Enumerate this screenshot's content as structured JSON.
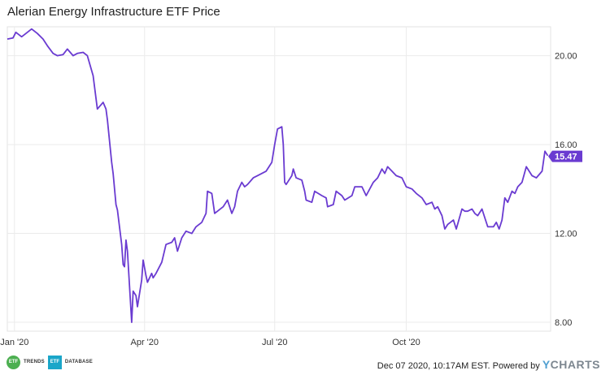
{
  "chart_data": {
    "type": "line",
    "title": "Alerian Energy Infrastructure ETF Price",
    "x_tick_labels": [
      "Jan '20",
      "Apr '20",
      "Jul '20",
      "Oct '20"
    ],
    "y_tick_labels": [
      "8.00",
      "12.00",
      "16.00",
      "20.00"
    ],
    "ylim": [
      7.6,
      21.3
    ],
    "grid": true,
    "series": [
      {
        "color": "#6a3bd1",
        "last_value_label": "15.47",
        "points": [
          [
            "2019-12-27",
            20.75
          ],
          [
            "2019-12-31",
            20.8
          ],
          [
            "2020-01-02",
            21.05
          ],
          [
            "2020-01-06",
            20.85
          ],
          [
            "2020-01-09",
            21.0
          ],
          [
            "2020-01-13",
            21.2
          ],
          [
            "2020-01-17",
            21.0
          ],
          [
            "2020-01-21",
            20.75
          ],
          [
            "2020-01-24",
            20.45
          ],
          [
            "2020-01-28",
            20.1
          ],
          [
            "2020-01-31",
            20.0
          ],
          [
            "2020-02-04",
            20.05
          ],
          [
            "2020-02-07",
            20.3
          ],
          [
            "2020-02-11",
            20.0
          ],
          [
            "2020-02-14",
            20.1
          ],
          [
            "2020-02-18",
            20.15
          ],
          [
            "2020-02-21",
            20.0
          ],
          [
            "2020-02-25",
            19.1
          ],
          [
            "2020-02-28",
            17.6
          ],
          [
            "2020-03-03",
            17.9
          ],
          [
            "2020-03-05",
            17.6
          ],
          [
            "2020-03-06",
            17.1
          ],
          [
            "2020-03-09",
            15.2
          ],
          [
            "2020-03-10",
            14.7
          ],
          [
            "2020-03-12",
            13.3
          ],
          [
            "2020-03-13",
            13.05
          ],
          [
            "2020-03-16",
            11.5
          ],
          [
            "2020-03-17",
            10.6
          ],
          [
            "2020-03-18",
            10.5
          ],
          [
            "2020-03-19",
            11.7
          ],
          [
            "2020-03-20",
            11.2
          ],
          [
            "2020-03-23",
            8.0
          ],
          [
            "2020-03-24",
            9.4
          ],
          [
            "2020-03-26",
            9.2
          ],
          [
            "2020-03-27",
            8.7
          ],
          [
            "2020-03-30",
            9.9
          ],
          [
            "2020-03-31",
            10.8
          ],
          [
            "2020-04-02",
            10.1
          ],
          [
            "2020-04-03",
            9.8
          ],
          [
            "2020-04-06",
            10.2
          ],
          [
            "2020-04-07",
            10.0
          ],
          [
            "2020-04-09",
            10.2
          ],
          [
            "2020-04-13",
            10.7
          ],
          [
            "2020-04-16",
            11.5
          ],
          [
            "2020-04-20",
            11.6
          ],
          [
            "2020-04-22",
            11.8
          ],
          [
            "2020-04-24",
            11.2
          ],
          [
            "2020-04-27",
            11.8
          ],
          [
            "2020-04-30",
            12.1
          ],
          [
            "2020-05-04",
            12.0
          ],
          [
            "2020-05-07",
            12.3
          ],
          [
            "2020-05-11",
            12.5
          ],
          [
            "2020-05-14",
            12.9
          ],
          [
            "2020-05-15",
            13.9
          ],
          [
            "2020-05-18",
            13.8
          ],
          [
            "2020-05-20",
            12.9
          ],
          [
            "2020-05-22",
            13.0
          ],
          [
            "2020-05-26",
            13.2
          ],
          [
            "2020-05-29",
            13.5
          ],
          [
            "2020-06-01",
            12.9
          ],
          [
            "2020-06-03",
            13.2
          ],
          [
            "2020-06-05",
            13.9
          ],
          [
            "2020-06-08",
            14.3
          ],
          [
            "2020-06-10",
            14.1
          ],
          [
            "2020-06-12",
            14.2
          ],
          [
            "2020-06-16",
            14.5
          ],
          [
            "2020-06-19",
            14.6
          ],
          [
            "2020-06-22",
            14.7
          ],
          [
            "2020-06-25",
            14.8
          ],
          [
            "2020-06-29",
            15.2
          ],
          [
            "2020-07-01",
            16.0
          ],
          [
            "2020-07-03",
            16.7
          ],
          [
            "2020-07-06",
            16.8
          ],
          [
            "2020-07-07",
            16.0
          ],
          [
            "2020-07-08",
            14.3
          ],
          [
            "2020-07-09",
            14.2
          ],
          [
            "2020-07-13",
            14.6
          ],
          [
            "2020-07-14",
            14.9
          ],
          [
            "2020-07-16",
            14.5
          ],
          [
            "2020-07-20",
            14.4
          ],
          [
            "2020-07-22",
            13.9
          ],
          [
            "2020-07-23",
            13.5
          ],
          [
            "2020-07-27",
            13.4
          ],
          [
            "2020-07-29",
            13.9
          ],
          [
            "2020-08-03",
            13.7
          ],
          [
            "2020-08-06",
            13.6
          ],
          [
            "2020-08-07",
            13.2
          ],
          [
            "2020-08-11",
            13.3
          ],
          [
            "2020-08-13",
            13.9
          ],
          [
            "2020-08-17",
            13.7
          ],
          [
            "2020-08-19",
            13.5
          ],
          [
            "2020-08-24",
            13.7
          ],
          [
            "2020-08-26",
            14.1
          ],
          [
            "2020-08-31",
            14.1
          ],
          [
            "2020-09-03",
            13.7
          ],
          [
            "2020-09-08",
            14.3
          ],
          [
            "2020-09-11",
            14.5
          ],
          [
            "2020-09-14",
            14.9
          ],
          [
            "2020-09-16",
            14.7
          ],
          [
            "2020-09-18",
            15.0
          ],
          [
            "2020-09-21",
            14.8
          ],
          [
            "2020-09-24",
            14.6
          ],
          [
            "2020-09-28",
            14.5
          ],
          [
            "2020-10-01",
            14.1
          ],
          [
            "2020-10-05",
            14.0
          ],
          [
            "2020-10-08",
            13.8
          ],
          [
            "2020-10-12",
            13.6
          ],
          [
            "2020-10-15",
            13.3
          ],
          [
            "2020-10-19",
            13.4
          ],
          [
            "2020-10-21",
            13.1
          ],
          [
            "2020-10-23",
            13.2
          ],
          [
            "2020-10-26",
            12.8
          ],
          [
            "2020-10-28",
            12.2
          ],
          [
            "2020-10-30",
            12.4
          ],
          [
            "2020-11-03",
            12.6
          ],
          [
            "2020-11-05",
            12.2
          ],
          [
            "2020-11-09",
            13.1
          ],
          [
            "2020-11-11",
            13.0
          ],
          [
            "2020-11-13",
            13.0
          ],
          [
            "2020-11-16",
            13.1
          ],
          [
            "2020-11-18",
            12.9
          ],
          [
            "2020-11-20",
            12.8
          ],
          [
            "2020-11-23",
            13.1
          ],
          [
            "2020-11-25",
            12.7
          ],
          [
            "2020-11-27",
            12.3
          ],
          [
            "2020-12-01",
            12.3
          ],
          [
            "2020-12-03",
            12.5
          ],
          [
            "2020-12-05",
            12.2
          ],
          [
            "2020-12-07",
            12.6
          ],
          [
            "2020-12-09",
            13.6
          ],
          [
            "2020-12-11",
            13.4
          ],
          [
            "2020-12-14",
            13.9
          ],
          [
            "2020-12-16",
            13.8
          ],
          [
            "2020-12-18",
            14.1
          ],
          [
            "2020-12-21",
            14.3
          ],
          [
            "2020-12-24",
            15.0
          ],
          [
            "2020-12-28",
            14.6
          ],
          [
            "2020-12-31",
            14.5
          ],
          [
            "2021-01-04",
            14.8
          ],
          [
            "2021-01-06",
            15.7
          ],
          [
            "2021-01-08",
            15.5
          ]
        ]
      }
    ]
  },
  "footer": {
    "logo1_text": "ETF",
    "logo1_label": "TRENDS",
    "logo2_text": "ETF",
    "logo2_label": "DATABASE",
    "timestamp": "Dec 07 2020, 10:17AM EST. Powered by ",
    "brand_y": "Y",
    "brand_rest": "CHARTS"
  }
}
